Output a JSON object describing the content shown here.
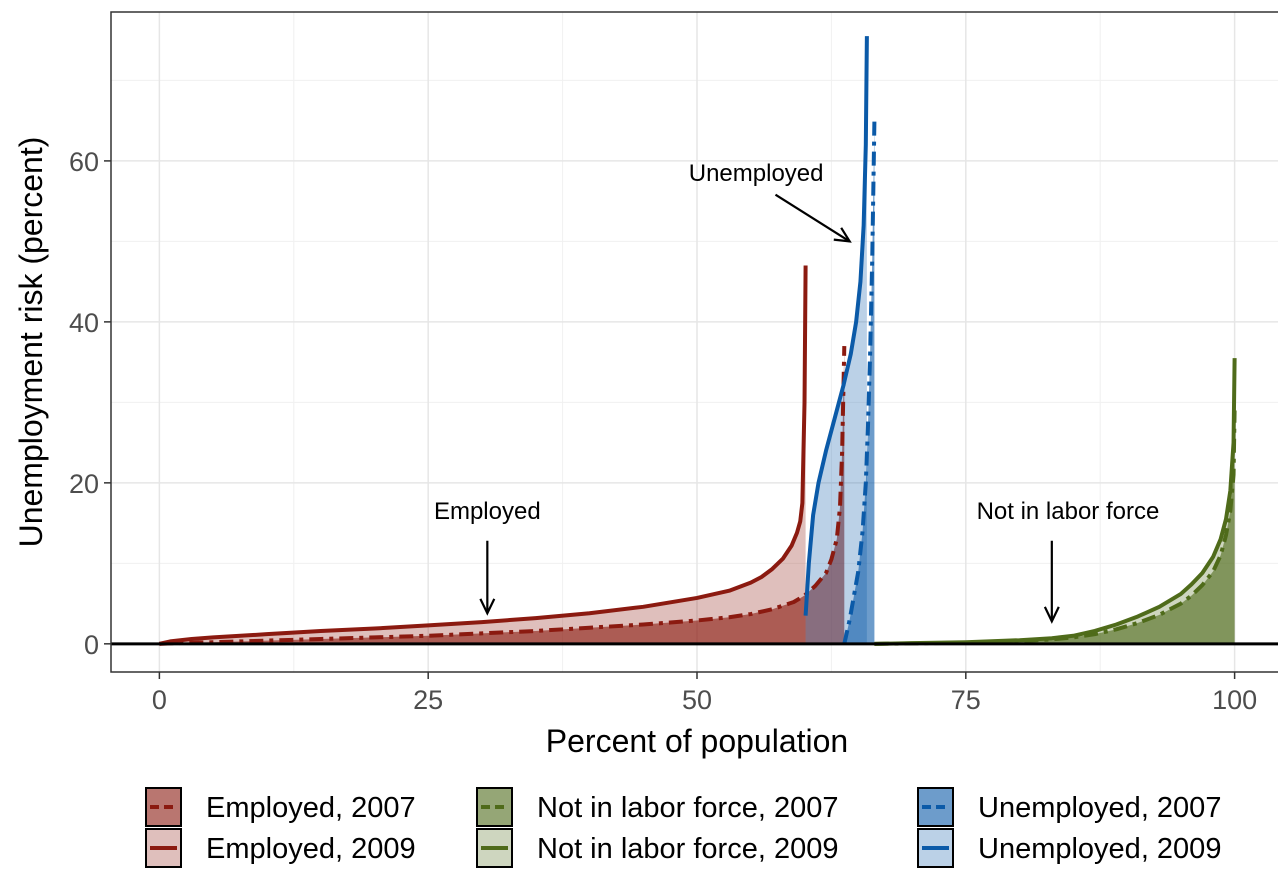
{
  "chart_data": {
    "type": "area",
    "xlabel": "Percent of population",
    "ylabel": "Unemployment risk (percent)",
    "xlim": [
      -4.5,
      104.5
    ],
    "ylim": [
      -3.5,
      78.5
    ],
    "x_ticks": [
      0,
      25,
      50,
      75,
      100
    ],
    "y_ticks": [
      0,
      20,
      40,
      60
    ],
    "grid": true,
    "legend_position": "bottom",
    "colors": {
      "employed": "#8b1a10",
      "not_in_labor_force": "#4f6b1a",
      "unemployed": "#0b5aa8"
    },
    "series": [
      {
        "name": "Employed, 2007",
        "group": "employed",
        "year": 2007,
        "linetype": "dashed",
        "x": [
          0,
          2,
          5,
          10,
          15,
          20,
          25,
          30,
          35,
          40,
          45,
          50,
          53,
          55,
          57,
          59,
          60,
          61,
          62,
          62.5,
          63,
          63.3,
          63.5,
          63.7
        ],
        "y": [
          0,
          0.1,
          0.2,
          0.4,
          0.6,
          0.8,
          1.0,
          1.3,
          1.6,
          2.0,
          2.4,
          2.9,
          3.3,
          3.7,
          4.3,
          5.2,
          6.0,
          7.2,
          8.8,
          10.5,
          13,
          17,
          24,
          37
        ]
      },
      {
        "name": "Employed, 2009",
        "group": "employed",
        "year": 2009,
        "linetype": "solid",
        "x": [
          0,
          1,
          3,
          5,
          10,
          15,
          20,
          25,
          30,
          35,
          40,
          45,
          50,
          53,
          55,
          56,
          57,
          58,
          58.8,
          59.3,
          59.6,
          59.8,
          60.0,
          60.1
        ],
        "y": [
          0,
          0.3,
          0.6,
          0.8,
          1.2,
          1.6,
          1.9,
          2.3,
          2.7,
          3.2,
          3.8,
          4.6,
          5.7,
          6.6,
          7.6,
          8.3,
          9.3,
          10.6,
          12.2,
          13.8,
          15.2,
          17.5,
          30,
          47
        ]
      },
      {
        "name": "Not in labor force, 2007",
        "group": "not_in_labor_force",
        "year": 2007,
        "linetype": "dashed",
        "x": [
          66.5,
          70,
          75,
          80,
          83,
          85,
          87,
          89,
          91,
          93,
          95,
          96,
          97,
          98,
          98.7,
          99.2,
          99.6,
          99.9,
          100
        ],
        "y": [
          0,
          0.05,
          0.15,
          0.35,
          0.55,
          0.8,
          1.2,
          1.8,
          2.6,
          3.6,
          5.0,
          6.0,
          7.3,
          9.0,
          11,
          13.5,
          16.5,
          21,
          29
        ]
      },
      {
        "name": "Not in labor force, 2009",
        "group": "not_in_labor_force",
        "year": 2009,
        "linetype": "solid",
        "x": [
          66.5,
          70,
          75,
          80,
          83,
          85,
          87,
          89,
          91,
          93,
          95,
          96,
          97,
          98,
          98.7,
          99.2,
          99.6,
          99.9,
          100
        ],
        "y": [
          0,
          0.08,
          0.2,
          0.45,
          0.7,
          1.0,
          1.6,
          2.4,
          3.4,
          4.6,
          6.2,
          7.4,
          8.8,
          10.8,
          13,
          15.5,
          19,
          25,
          35.5
        ]
      },
      {
        "name": "Unemployed, 2007",
        "group": "unemployed",
        "year": 2007,
        "linetype": "dashed",
        "x": [
          63.7,
          64.2,
          64.6,
          65.0,
          65.4,
          65.7,
          65.9,
          66.1,
          66.3,
          66.5
        ],
        "y": [
          0,
          3.0,
          6.0,
          9.0,
          14,
          20,
          27,
          36,
          48,
          65
        ]
      },
      {
        "name": "Unemployed, 2009",
        "group": "unemployed",
        "year": 2009,
        "linetype": "solid",
        "x": [
          60.1,
          60.4,
          60.8,
          61.3,
          62.0,
          62.8,
          63.6,
          64.3,
          64.8,
          65.2,
          65.5,
          65.7,
          65.8
        ],
        "y": [
          3.5,
          10,
          16,
          20,
          24,
          28,
          32,
          36,
          40,
          45,
          52,
          62,
          75.5
        ]
      }
    ],
    "annotations": [
      {
        "text": "Employed",
        "text_x": 30.5,
        "text_y": 15.5,
        "arrow_from": [
          30.5,
          12.8
        ],
        "arrow_to": [
          30.5,
          3.8
        ]
      },
      {
        "text": "Unemployed",
        "text_x": 55.5,
        "text_y": 57.5,
        "arrow_from": [
          57.3,
          55.8
        ],
        "arrow_to": [
          64.2,
          50
        ]
      },
      {
        "text": "Not in labor force",
        "text_x": 84.5,
        "text_y": 15.5,
        "arrow_from": [
          83,
          12.8
        ],
        "arrow_to": [
          83,
          2.8
        ]
      }
    ]
  }
}
